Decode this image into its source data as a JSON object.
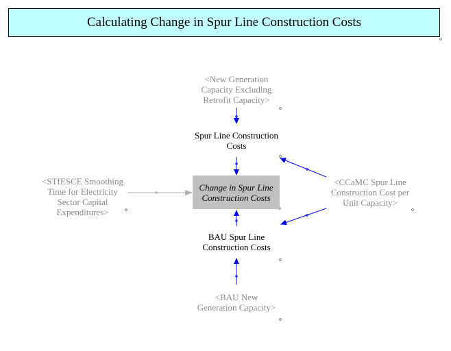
{
  "title": "Calculating Change in Spur Line Construction Costs",
  "nodes": {
    "new_gen_capacity": "<New Generation\nCapacity Excluding\nRetrofit Capacity>",
    "spur_line_costs": "Spur Line Construction\nCosts",
    "stfesce": "<STfESCE Smoothing\nTime for Electricity\nSector Capital\nExpenditures>",
    "change_spur_line": "Change in Spur Line\nConstruction Costs",
    "ccamc": "<CCaMC Spur Line\nConstruction Cost per\nUnit Capacity>",
    "bau_spur_line": "BAU Spur Line\nConstruction Costs",
    "bau_new_gen": "<BAU New\nGeneration Capacity>"
  },
  "colors": {
    "title_background": "#c0ffff",
    "arrow": "#0000ff",
    "shadow_text": "#8a8a8a",
    "stock_fill": "#c0c0c0",
    "gray_arrow": "#b0b0b0"
  }
}
